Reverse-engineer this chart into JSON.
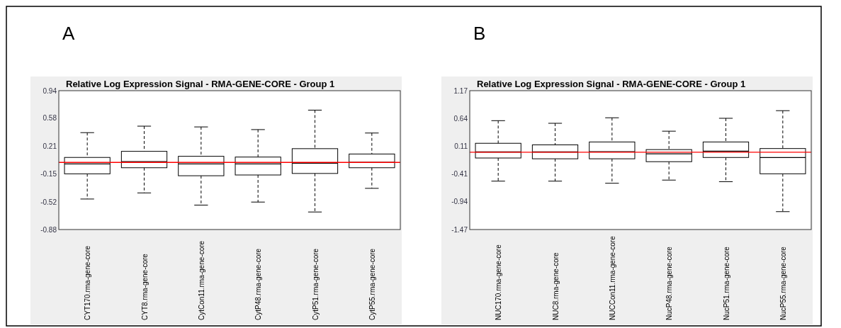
{
  "chart_data": [
    {
      "type": "box",
      "title": "Relative Log Expression Signal - RMA-GENE-CORE - Group 1",
      "annotations": [
        "A"
      ],
      "categories": [
        "CYT170.rma-gene-core",
        "CYT8.rma-gene-core",
        "CytCon11.rma-gene-core",
        "CytP48.rma-gene-core",
        "CytP51.rma-gene-core",
        "CytP55.rma-gene-core"
      ],
      "boxes": [
        {
          "low": -0.48,
          "q1": -0.15,
          "median": -0.02,
          "q3": 0.065,
          "high": 0.39
        },
        {
          "low": -0.4,
          "q1": -0.07,
          "median": 0.01,
          "q3": 0.145,
          "high": 0.475
        },
        {
          "low": -0.56,
          "q1": -0.175,
          "median": -0.02,
          "q3": 0.08,
          "high": 0.465
        },
        {
          "low": -0.52,
          "q1": -0.165,
          "median": -0.02,
          "q3": 0.07,
          "high": 0.43
        },
        {
          "low": -0.65,
          "q1": -0.145,
          "median": -0.01,
          "q3": 0.18,
          "high": 0.685
        },
        {
          "low": -0.34,
          "q1": -0.07,
          "median": 0.0,
          "q3": 0.11,
          "high": 0.385
        }
      ],
      "ylim": [
        -0.88,
        0.94
      ],
      "yticks": [
        -0.88,
        -0.52,
        -0.15,
        0.21,
        0.58,
        0.94
      ],
      "ref_lines": [
        {
          "axis": "y",
          "value": 0,
          "color": "#ff0000"
        }
      ]
    },
    {
      "type": "box",
      "title": "Relative Log Expression Signal - RMA-GENE-CORE - Group 1",
      "annotations": [
        "B"
      ],
      "categories": [
        "NUC170.rma-gene-core",
        "NUC8.rma-gene-core",
        "NUCCon11.rma-gene-core",
        "NucP48.rma-gene-core",
        "NucP51.rma-gene-core",
        "NucP55.rma-gene-core"
      ],
      "boxes": [
        {
          "low": -0.55,
          "q1": -0.11,
          "median": 0.005,
          "q3": 0.17,
          "high": 0.6
        },
        {
          "low": -0.55,
          "q1": -0.125,
          "median": 0.005,
          "q3": 0.14,
          "high": 0.55
        },
        {
          "low": -0.59,
          "q1": -0.125,
          "median": 0.01,
          "q3": 0.195,
          "high": 0.655
        },
        {
          "low": -0.53,
          "q1": -0.18,
          "median": -0.03,
          "q3": 0.05,
          "high": 0.4
        },
        {
          "low": -0.56,
          "q1": -0.1,
          "median": 0.02,
          "q3": 0.195,
          "high": 0.645
        },
        {
          "low": -1.13,
          "q1": -0.41,
          "median": -0.1,
          "q3": 0.07,
          "high": 0.79
        }
      ],
      "ylim": [
        -1.47,
        1.17
      ],
      "yticks": [
        -1.47,
        -0.94,
        -0.41,
        0.11,
        0.64,
        1.17
      ],
      "ref_lines": [
        {
          "axis": "y",
          "value": 0,
          "color": "#ff0000"
        }
      ]
    }
  ]
}
